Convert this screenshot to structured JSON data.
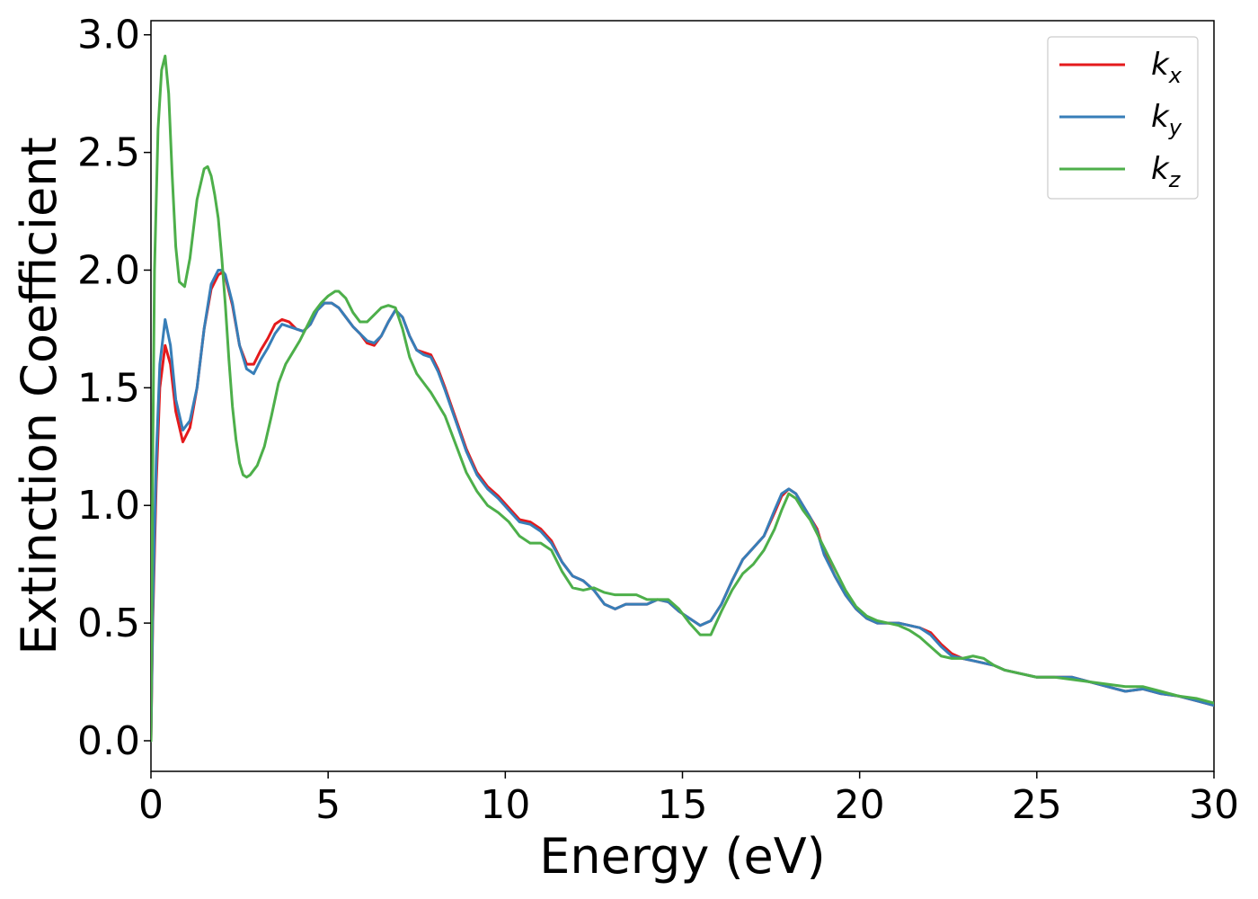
{
  "chart_data": {
    "type": "line",
    "title": "",
    "xlabel": "Energy (eV)",
    "ylabel": "Extinction Coefficient",
    "xlim": [
      0,
      30
    ],
    "ylim": [
      -0.13,
      3.06
    ],
    "xticks": [
      0,
      5,
      10,
      15,
      20,
      25,
      30
    ],
    "yticks": [
      0.0,
      0.5,
      1.0,
      1.5,
      2.0,
      2.5,
      3.0
    ],
    "xtick_labels": [
      "0",
      "5",
      "10",
      "15",
      "20",
      "25",
      "30"
    ],
    "ytick_labels": [
      "0.0",
      "0.5",
      "1.0",
      "1.5",
      "2.0",
      "2.5",
      "3.0"
    ],
    "grid": false,
    "legend_position": "top-right",
    "series": [
      {
        "name": "k_x",
        "label_main": "k",
        "label_sub": "x",
        "color": "#e41a1c",
        "x": [
          0,
          0.05,
          0.15,
          0.25,
          0.4,
          0.55,
          0.7,
          0.9,
          1.1,
          1.3,
          1.5,
          1.7,
          1.9,
          2.0,
          2.1,
          2.3,
          2.5,
          2.7,
          2.9,
          3.1,
          3.3,
          3.5,
          3.7,
          3.9,
          4.1,
          4.3,
          4.5,
          4.7,
          4.9,
          5.1,
          5.3,
          5.5,
          5.7,
          5.9,
          6.1,
          6.3,
          6.5,
          6.7,
          6.9,
          7.1,
          7.3,
          7.5,
          7.7,
          7.9,
          8.1,
          8.3,
          8.6,
          8.9,
          9.2,
          9.5,
          9.8,
          10.1,
          10.4,
          10.7,
          11.0,
          11.3,
          11.6,
          11.9,
          12.2,
          12.5,
          12.8,
          13.1,
          13.4,
          13.7,
          14.0,
          14.3,
          14.6,
          14.9,
          15.2,
          15.5,
          15.8,
          16.1,
          16.4,
          16.7,
          17.0,
          17.3,
          17.6,
          17.8,
          18.0,
          18.2,
          18.4,
          18.6,
          18.8,
          19.0,
          19.3,
          19.6,
          19.9,
          20.2,
          20.5,
          20.8,
          21.1,
          21.4,
          21.7,
          22.0,
          22.3,
          22.6,
          22.9,
          23.2,
          23.5,
          23.8,
          24.1,
          24.4,
          24.7,
          25.0,
          25.5,
          26.0,
          26.5,
          27.0,
          27.5,
          28.0,
          28.5,
          29.0,
          29.5,
          30.0
        ],
        "y": [
          0.0,
          0.5,
          1.1,
          1.5,
          1.68,
          1.6,
          1.4,
          1.27,
          1.33,
          1.5,
          1.75,
          1.92,
          1.98,
          1.99,
          1.97,
          1.85,
          1.68,
          1.6,
          1.6,
          1.66,
          1.71,
          1.77,
          1.79,
          1.78,
          1.75,
          1.74,
          1.77,
          1.83,
          1.86,
          1.86,
          1.84,
          1.8,
          1.76,
          1.73,
          1.69,
          1.68,
          1.72,
          1.78,
          1.83,
          1.8,
          1.72,
          1.66,
          1.65,
          1.64,
          1.58,
          1.5,
          1.37,
          1.24,
          1.14,
          1.08,
          1.04,
          0.99,
          0.94,
          0.93,
          0.9,
          0.85,
          0.76,
          0.7,
          0.68,
          0.64,
          0.58,
          0.56,
          0.58,
          0.58,
          0.58,
          0.6,
          0.59,
          0.55,
          0.52,
          0.49,
          0.51,
          0.58,
          0.68,
          0.77,
          0.82,
          0.87,
          0.97,
          1.04,
          1.07,
          1.05,
          1.0,
          0.95,
          0.9,
          0.8,
          0.7,
          0.62,
          0.56,
          0.52,
          0.5,
          0.5,
          0.5,
          0.49,
          0.48,
          0.46,
          0.41,
          0.37,
          0.35,
          0.34,
          0.33,
          0.32,
          0.3,
          0.29,
          0.28,
          0.27,
          0.27,
          0.27,
          0.25,
          0.23,
          0.21,
          0.22,
          0.2,
          0.19,
          0.17,
          0.15
        ]
      },
      {
        "name": "k_y",
        "label_main": "k",
        "label_sub": "y",
        "color": "#377eb8",
        "x": [
          0,
          0.05,
          0.15,
          0.25,
          0.4,
          0.55,
          0.7,
          0.9,
          1.1,
          1.3,
          1.5,
          1.7,
          1.9,
          2.0,
          2.1,
          2.3,
          2.5,
          2.7,
          2.9,
          3.1,
          3.3,
          3.5,
          3.7,
          3.9,
          4.1,
          4.3,
          4.5,
          4.7,
          4.9,
          5.1,
          5.3,
          5.5,
          5.7,
          5.9,
          6.1,
          6.3,
          6.5,
          6.7,
          6.9,
          7.1,
          7.3,
          7.5,
          7.7,
          7.9,
          8.1,
          8.3,
          8.6,
          8.9,
          9.2,
          9.5,
          9.8,
          10.1,
          10.4,
          10.7,
          11.0,
          11.3,
          11.6,
          11.9,
          12.2,
          12.5,
          12.8,
          13.1,
          13.4,
          13.7,
          14.0,
          14.3,
          14.6,
          14.9,
          15.2,
          15.5,
          15.8,
          16.1,
          16.4,
          16.7,
          17.0,
          17.3,
          17.6,
          17.8,
          18.0,
          18.2,
          18.4,
          18.6,
          18.8,
          19.0,
          19.3,
          19.6,
          19.9,
          20.2,
          20.5,
          20.8,
          21.1,
          21.4,
          21.7,
          22.0,
          22.3,
          22.6,
          22.9,
          23.2,
          23.5,
          23.8,
          24.1,
          24.4,
          24.7,
          25.0,
          25.5,
          26.0,
          26.5,
          27.0,
          27.5,
          28.0,
          28.5,
          29.0,
          29.5,
          30.0
        ],
        "y": [
          0.0,
          0.55,
          1.2,
          1.6,
          1.79,
          1.68,
          1.45,
          1.32,
          1.36,
          1.5,
          1.75,
          1.94,
          2.0,
          2.0,
          1.98,
          1.86,
          1.68,
          1.58,
          1.56,
          1.62,
          1.67,
          1.73,
          1.77,
          1.76,
          1.75,
          1.74,
          1.77,
          1.83,
          1.86,
          1.86,
          1.84,
          1.8,
          1.76,
          1.73,
          1.7,
          1.69,
          1.72,
          1.78,
          1.83,
          1.8,
          1.72,
          1.66,
          1.64,
          1.63,
          1.57,
          1.49,
          1.36,
          1.23,
          1.13,
          1.07,
          1.03,
          0.98,
          0.93,
          0.92,
          0.89,
          0.84,
          0.76,
          0.7,
          0.68,
          0.64,
          0.58,
          0.56,
          0.58,
          0.58,
          0.58,
          0.6,
          0.59,
          0.55,
          0.52,
          0.49,
          0.51,
          0.58,
          0.68,
          0.77,
          0.82,
          0.87,
          0.98,
          1.05,
          1.07,
          1.05,
          1.0,
          0.95,
          0.89,
          0.79,
          0.7,
          0.62,
          0.56,
          0.52,
          0.5,
          0.5,
          0.5,
          0.49,
          0.48,
          0.45,
          0.4,
          0.36,
          0.35,
          0.34,
          0.33,
          0.32,
          0.3,
          0.29,
          0.28,
          0.27,
          0.27,
          0.27,
          0.25,
          0.23,
          0.21,
          0.22,
          0.2,
          0.19,
          0.17,
          0.15
        ]
      },
      {
        "name": "k_z",
        "label_main": "k",
        "label_sub": "z",
        "color": "#4daf4a",
        "x": [
          0,
          0.05,
          0.1,
          0.2,
          0.3,
          0.4,
          0.5,
          0.6,
          0.7,
          0.8,
          0.95,
          1.1,
          1.3,
          1.5,
          1.6,
          1.7,
          1.8,
          1.9,
          2.0,
          2.1,
          2.2,
          2.3,
          2.4,
          2.5,
          2.6,
          2.7,
          2.8,
          2.9,
          3.0,
          3.2,
          3.4,
          3.6,
          3.8,
          4.0,
          4.2,
          4.4,
          4.6,
          4.8,
          5.0,
          5.2,
          5.3,
          5.5,
          5.7,
          5.9,
          6.1,
          6.3,
          6.5,
          6.7,
          6.9,
          7.1,
          7.3,
          7.5,
          7.7,
          7.9,
          8.1,
          8.3,
          8.6,
          8.9,
          9.2,
          9.5,
          9.8,
          10.1,
          10.4,
          10.7,
          11.0,
          11.3,
          11.6,
          11.9,
          12.2,
          12.5,
          12.8,
          13.1,
          13.4,
          13.7,
          14.0,
          14.3,
          14.6,
          14.9,
          15.2,
          15.5,
          15.8,
          16.1,
          16.4,
          16.7,
          17.0,
          17.3,
          17.6,
          17.8,
          18.0,
          18.2,
          18.4,
          18.6,
          18.8,
          19.0,
          19.3,
          19.6,
          19.9,
          20.2,
          20.5,
          20.8,
          21.1,
          21.4,
          21.7,
          22.0,
          22.3,
          22.6,
          22.9,
          23.2,
          23.5,
          23.8,
          24.1,
          24.4,
          24.7,
          25.0,
          25.5,
          26.0,
          26.5,
          27.0,
          27.5,
          28.0,
          28.5,
          29.0,
          29.5,
          30.0
        ],
        "y": [
          0.0,
          1.2,
          2.0,
          2.6,
          2.85,
          2.91,
          2.75,
          2.4,
          2.1,
          1.95,
          1.93,
          2.05,
          2.3,
          2.43,
          2.44,
          2.4,
          2.32,
          2.22,
          2.05,
          1.85,
          1.62,
          1.42,
          1.28,
          1.18,
          1.13,
          1.12,
          1.13,
          1.15,
          1.17,
          1.25,
          1.38,
          1.52,
          1.6,
          1.65,
          1.7,
          1.76,
          1.82,
          1.86,
          1.89,
          1.91,
          1.91,
          1.88,
          1.82,
          1.78,
          1.78,
          1.81,
          1.84,
          1.85,
          1.84,
          1.75,
          1.63,
          1.56,
          1.52,
          1.48,
          1.43,
          1.38,
          1.26,
          1.14,
          1.06,
          1.0,
          0.97,
          0.93,
          0.87,
          0.84,
          0.84,
          0.81,
          0.72,
          0.65,
          0.64,
          0.65,
          0.63,
          0.62,
          0.62,
          0.62,
          0.6,
          0.6,
          0.6,
          0.56,
          0.5,
          0.45,
          0.45,
          0.55,
          0.64,
          0.71,
          0.75,
          0.81,
          0.9,
          0.98,
          1.05,
          1.03,
          0.98,
          0.94,
          0.88,
          0.82,
          0.73,
          0.64,
          0.57,
          0.53,
          0.51,
          0.5,
          0.49,
          0.47,
          0.44,
          0.4,
          0.36,
          0.35,
          0.35,
          0.36,
          0.35,
          0.32,
          0.3,
          0.29,
          0.28,
          0.27,
          0.27,
          0.26,
          0.25,
          0.24,
          0.23,
          0.23,
          0.21,
          0.19,
          0.18,
          0.16
        ]
      }
    ]
  }
}
